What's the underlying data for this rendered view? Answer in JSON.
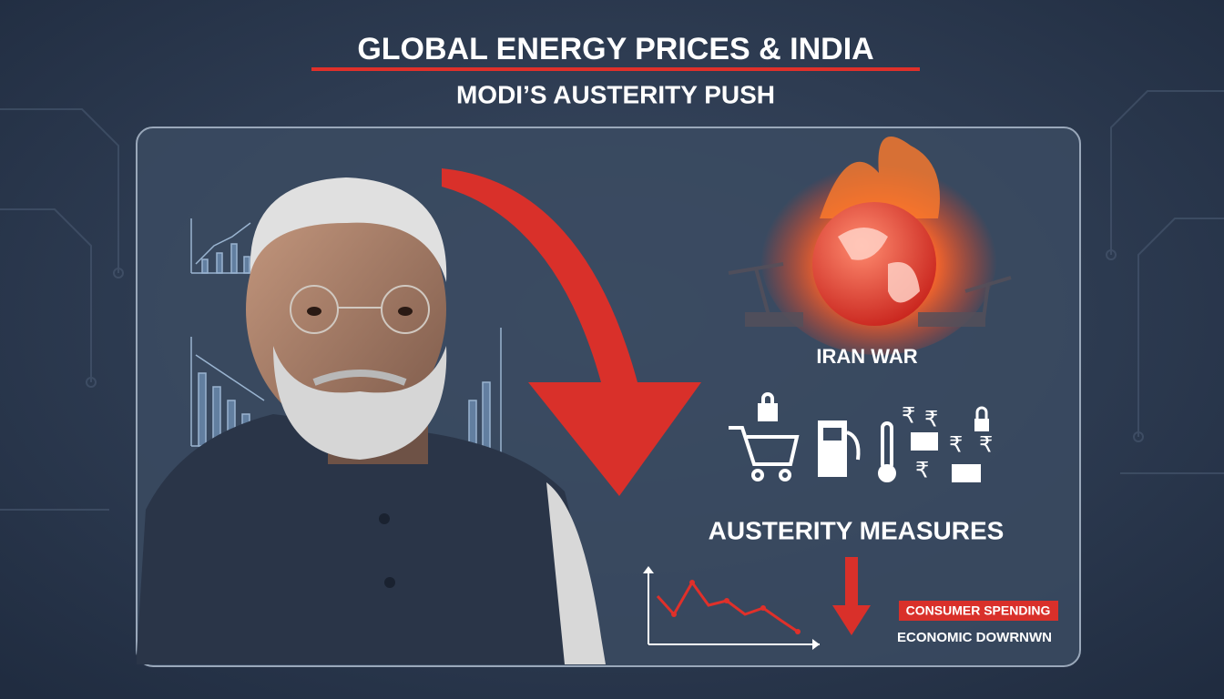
{
  "header": {
    "title": "GLOBAL ENERGY PRICES & INDIA",
    "subtitle": "MODI’S AUSTERITY PUSH"
  },
  "panel": {
    "iran_label": "IRAN WAR",
    "austerity_label": "AUSTERITY MEASURES",
    "badge": "CONSUMER SPENDING",
    "downturn": "ECONOMIC DOWRNWN"
  }
}
